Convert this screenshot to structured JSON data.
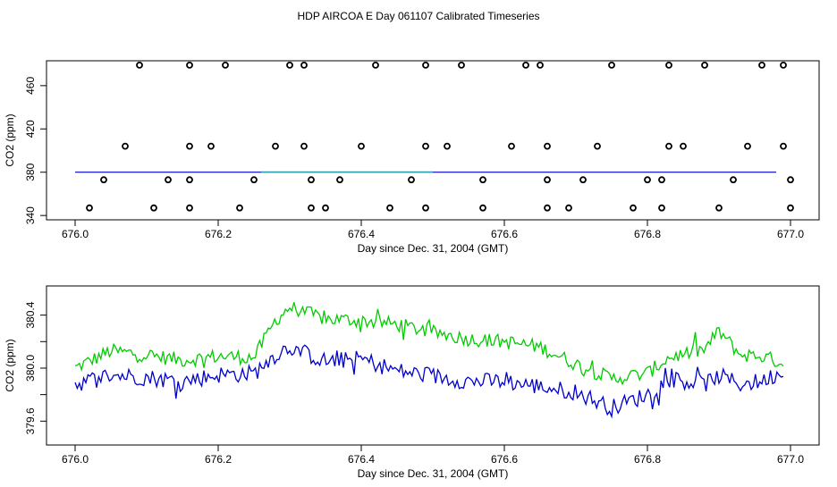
{
  "figure_title": "HDP AIRCOA E  Day 061107  Calibrated Timeseries",
  "colors": {
    "axis": "#000000",
    "blue": "#0000cc",
    "green": "#00cc00",
    "teal": "#2f9faf"
  },
  "chart_data": [
    {
      "id": "top",
      "type": "line",
      "title": "",
      "xlabel": "Day since Dec. 31, 2004 (GMT)",
      "ylabel": "CO2 (ppm)",
      "xlim": [
        675.96,
        677.04
      ],
      "ylim": [
        336,
        483
      ],
      "xticks": [
        676.0,
        676.2,
        676.4,
        676.6,
        676.8,
        677.0
      ],
      "xtick_labels": [
        "676.0",
        "676.2",
        "676.4",
        "676.6",
        "676.8",
        "677.0"
      ],
      "yticks": [
        340,
        380,
        420,
        460
      ],
      "ytick_labels": [
        "340",
        "380",
        "420",
        "460"
      ],
      "series": [
        {
          "name": "calibrated CO2 (blue)",
          "style": "line",
          "color": "#0000cc",
          "x": [
            676.0,
            676.98
          ],
          "y": [
            380.0,
            380.0
          ]
        },
        {
          "name": "calibrated CO2 (teal)",
          "style": "line",
          "color": "#2f9faf",
          "x": [
            676.26,
            676.5
          ],
          "y": [
            380.3,
            380.3
          ]
        },
        {
          "name": "calibration standard points",
          "style": "points",
          "color": "#000000",
          "points": [
            [
              676.09,
              479
            ],
            [
              676.16,
              479
            ],
            [
              676.21,
              479
            ],
            [
              676.3,
              479
            ],
            [
              676.32,
              479
            ],
            [
              676.42,
              479
            ],
            [
              676.49,
              479
            ],
            [
              676.54,
              479
            ],
            [
              676.63,
              479
            ],
            [
              676.65,
              479
            ],
            [
              676.75,
              479
            ],
            [
              676.83,
              479
            ],
            [
              676.88,
              479
            ],
            [
              676.96,
              479
            ],
            [
              676.99,
              479
            ],
            [
              676.07,
              404
            ],
            [
              676.16,
              404
            ],
            [
              676.19,
              404
            ],
            [
              676.28,
              404
            ],
            [
              676.32,
              404
            ],
            [
              676.4,
              404
            ],
            [
              676.49,
              404
            ],
            [
              676.52,
              404
            ],
            [
              676.61,
              404
            ],
            [
              676.66,
              404
            ],
            [
              676.73,
              404
            ],
            [
              676.83,
              404
            ],
            [
              676.85,
              404
            ],
            [
              676.94,
              404
            ],
            [
              676.99,
              404
            ],
            [
              676.04,
              373
            ],
            [
              676.13,
              373
            ],
            [
              676.16,
              373
            ],
            [
              676.25,
              373
            ],
            [
              676.33,
              373
            ],
            [
              676.37,
              373
            ],
            [
              676.47,
              373
            ],
            [
              676.57,
              373
            ],
            [
              676.66,
              373
            ],
            [
              676.71,
              373
            ],
            [
              676.8,
              373
            ],
            [
              676.82,
              373
            ],
            [
              676.92,
              373
            ],
            [
              677.0,
              373
            ],
            [
              676.02,
              347
            ],
            [
              676.11,
              347
            ],
            [
              676.16,
              347
            ],
            [
              676.23,
              347
            ],
            [
              676.33,
              347
            ],
            [
              676.35,
              347
            ],
            [
              676.44,
              347
            ],
            [
              676.49,
              347
            ],
            [
              676.57,
              347
            ],
            [
              676.66,
              347
            ],
            [
              676.69,
              347
            ],
            [
              676.78,
              347
            ],
            [
              676.82,
              347
            ],
            [
              676.9,
              347
            ],
            [
              677.0,
              347
            ]
          ]
        }
      ]
    },
    {
      "id": "bottom",
      "type": "line",
      "title": "",
      "xlabel": "Day since Dec. 31, 2004 (GMT)",
      "ylabel": "CO2 (ppm)",
      "xlim": [
        675.96,
        677.04
      ],
      "ylim": [
        379.42,
        380.62
      ],
      "xticks": [
        676.0,
        676.2,
        676.4,
        676.6,
        676.8,
        677.0
      ],
      "xtick_labels": [
        "676.0",
        "676.2",
        "676.4",
        "676.6",
        "676.8",
        "677.0"
      ],
      "yticks": [
        379.6,
        379.8,
        380.0,
        380.2,
        380.4
      ],
      "ytick_labels": [
        "379.6",
        "",
        "380.0",
        "",
        "380.4"
      ],
      "series": [
        {
          "name": "series A (green)",
          "color": "#00cc00",
          "x": [
            676.0,
            676.05,
            676.1,
            676.15,
            676.2,
            676.25,
            676.28,
            676.3,
            676.35,
            676.4,
            676.45,
            676.5,
            676.55,
            676.6,
            676.65,
            676.7,
            676.75,
            676.8,
            676.83,
            676.88,
            676.9,
            676.93,
            676.96,
            676.99
          ],
          "y": [
            380.0,
            380.13,
            380.1,
            380.06,
            380.09,
            380.08,
            380.36,
            380.46,
            380.37,
            380.36,
            380.33,
            380.27,
            380.22,
            380.2,
            380.16,
            380.03,
            379.92,
            379.96,
            380.08,
            380.14,
            380.28,
            380.1,
            380.09,
            380.04
          ]
        },
        {
          "name": "series B (blue)",
          "color": "#0000cc",
          "x": [
            676.0,
            676.05,
            676.1,
            676.15,
            676.2,
            676.25,
            676.28,
            676.3,
            676.35,
            676.4,
            676.45,
            676.5,
            676.55,
            676.6,
            676.65,
            676.7,
            676.75,
            676.8,
            676.83,
            676.88,
            676.9,
            676.93,
            676.96,
            676.99
          ],
          "y": [
            379.88,
            379.95,
            379.93,
            379.9,
            379.95,
            379.96,
            380.1,
            380.16,
            380.05,
            380.07,
            379.98,
            379.94,
            379.9,
            379.9,
            379.86,
            379.82,
            379.7,
            379.8,
            379.92,
            379.88,
            379.94,
            379.88,
            379.9,
            379.98
          ]
        }
      ]
    }
  ]
}
